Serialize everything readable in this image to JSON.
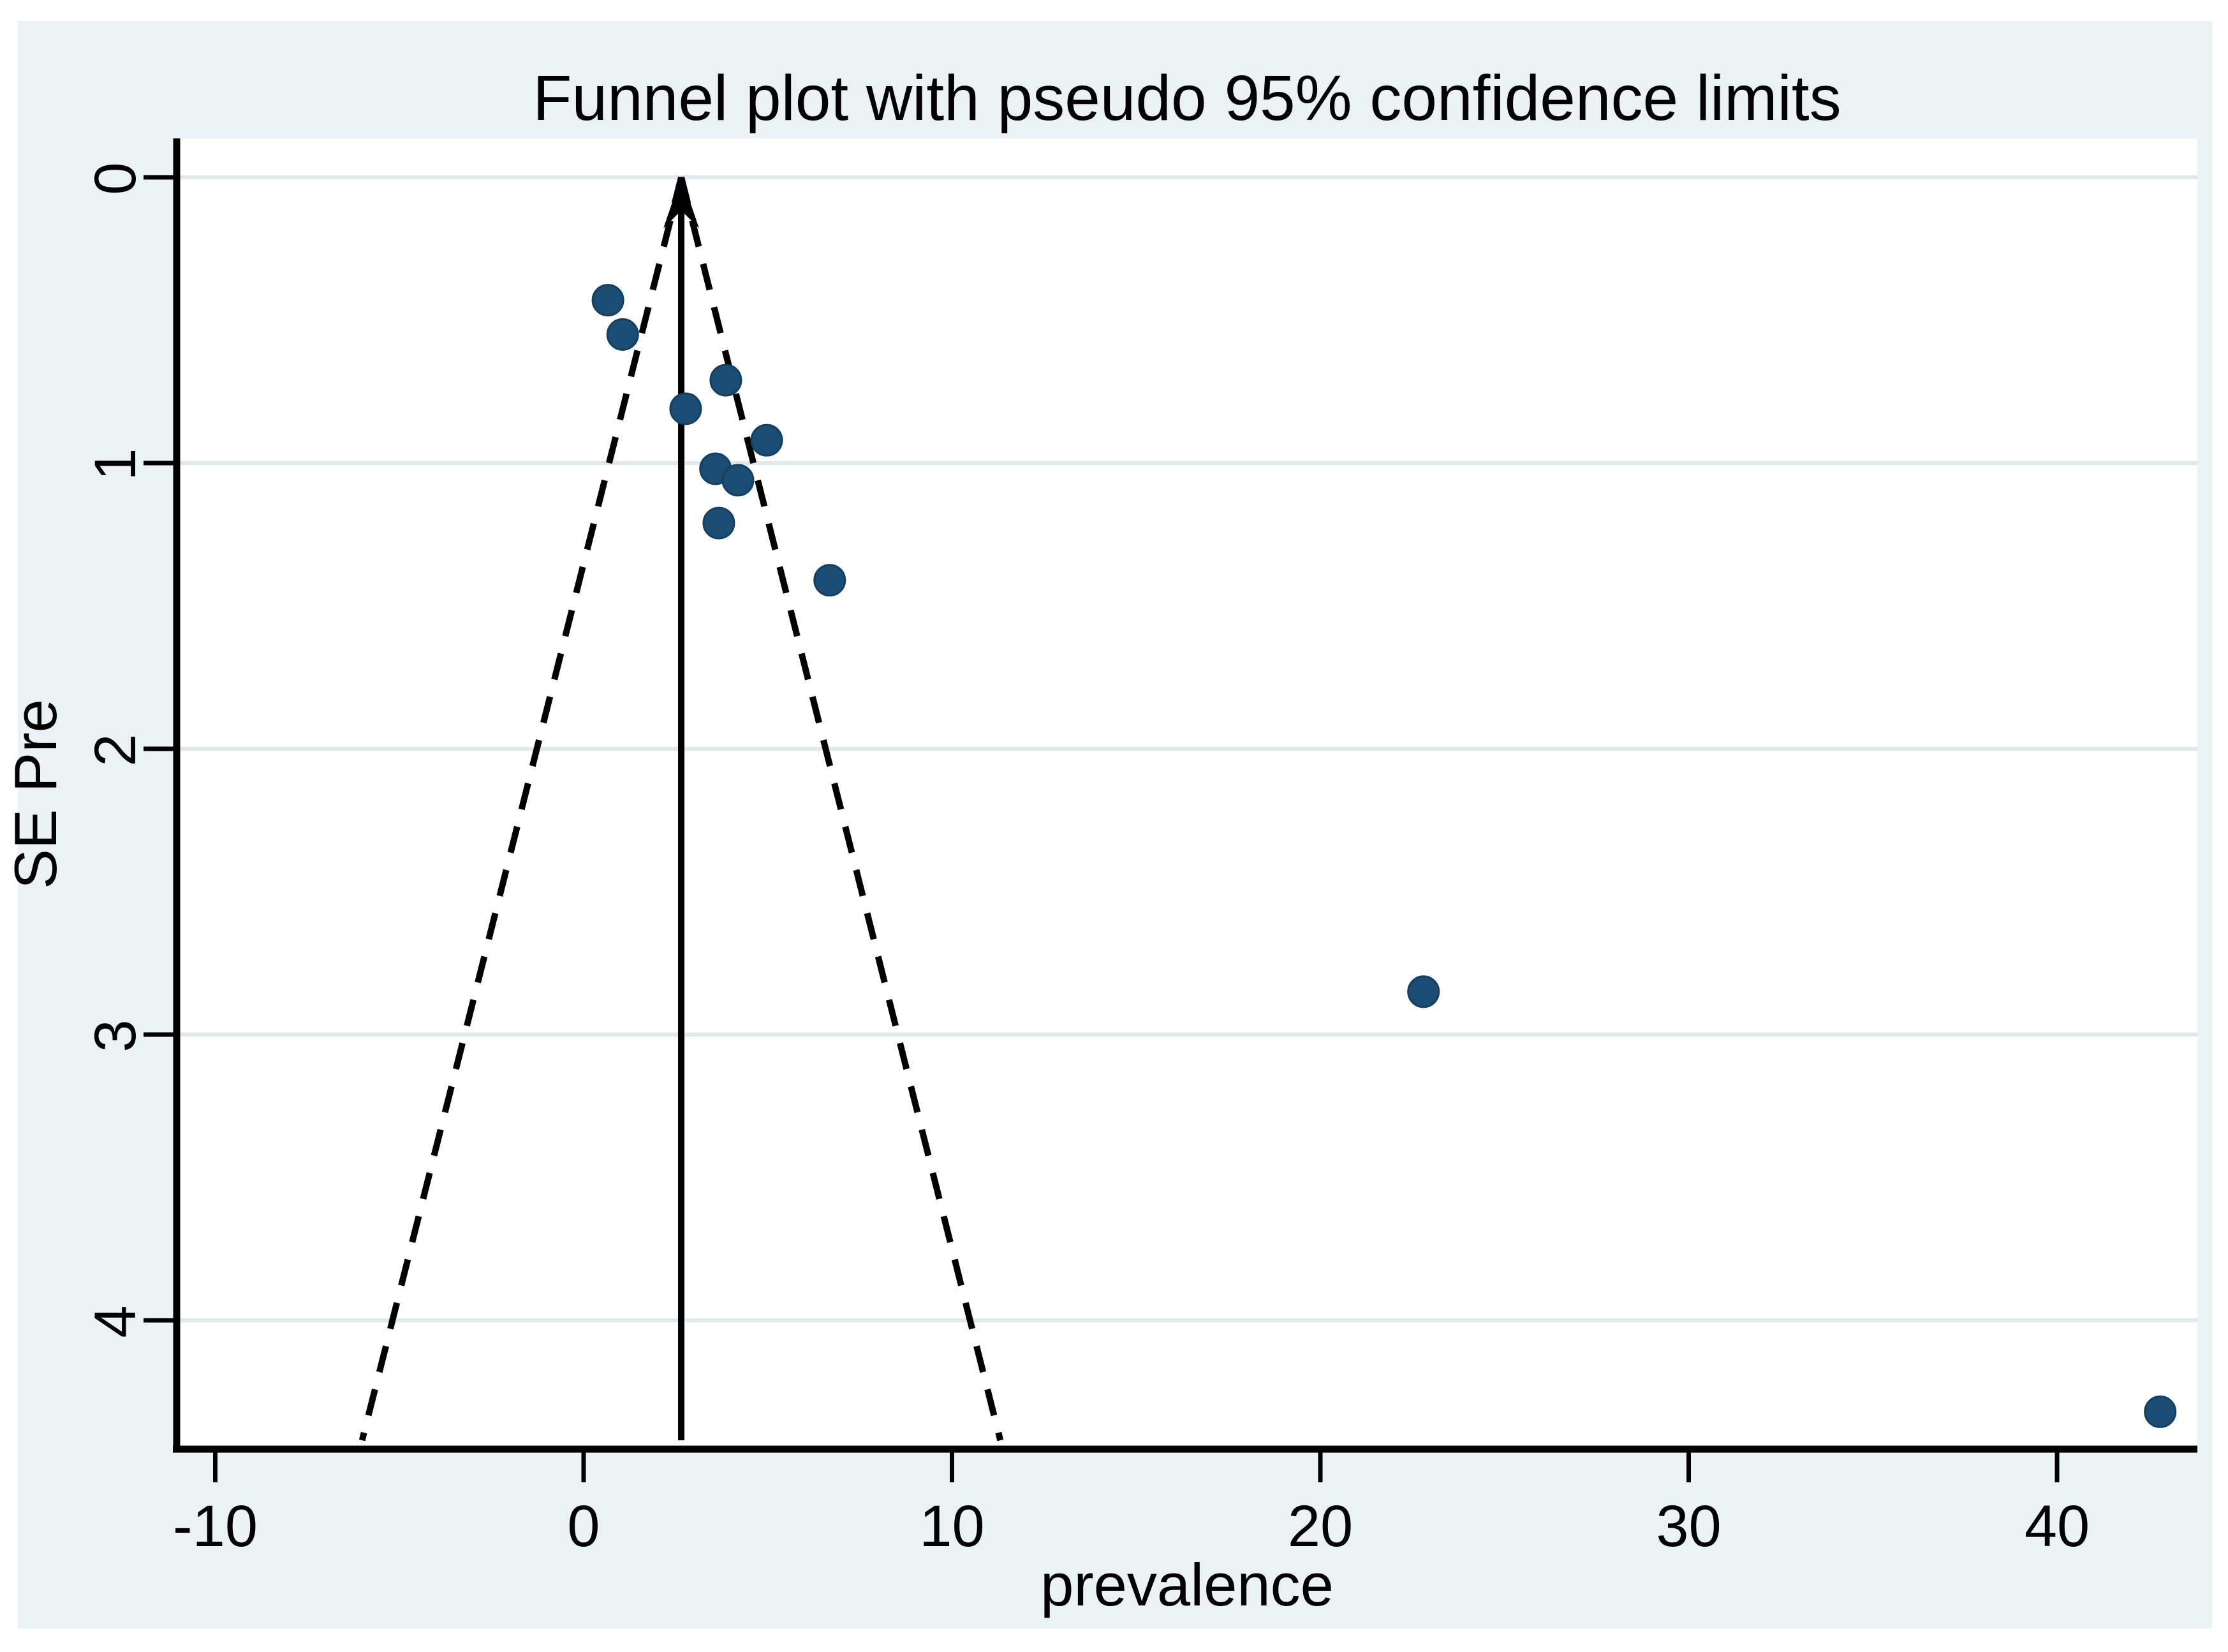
{
  "figure": {
    "kind": "stata-funnel-plot"
  },
  "chart_data": {
    "type": "scatter",
    "title": "Funnel plot with pseudo 95% confidence limits",
    "xlabel": "prevalence",
    "ylabel": "SE Pre",
    "x_ticks": [
      -10,
      0,
      10,
      20,
      30,
      40
    ],
    "y_ticks": [
      0,
      1,
      2,
      3,
      4
    ],
    "xlim": [
      -11.05,
      43.8
    ],
    "ylim_se": [
      -0.136,
      4.45
    ],
    "y_axis_inverted": true,
    "grid": true,
    "legend": "none",
    "pooled_estimate": 2.65,
    "ci_multiplier": 1.96,
    "funnel_se_max": 4.42,
    "points": [
      {
        "x": 0.66,
        "se": 0.43
      },
      {
        "x": 1.06,
        "se": 0.55
      },
      {
        "x": 3.86,
        "se": 0.71
      },
      {
        "x": 2.77,
        "se": 0.81
      },
      {
        "x": 4.97,
        "se": 0.92
      },
      {
        "x": 3.58,
        "se": 1.02
      },
      {
        "x": 4.19,
        "se": 1.06
      },
      {
        "x": 3.67,
        "se": 1.21
      },
      {
        "x": 6.68,
        "se": 1.41
      },
      {
        "x": 22.8,
        "se": 2.85
      },
      {
        "x": 42.8,
        "se": 4.32
      }
    ]
  },
  "colors": {
    "figure_background": "#eaf2f3",
    "plot_background": "#ffffff",
    "gridline": "#dde9ec",
    "axis": "#000000",
    "funnel_line": "#000000",
    "marker_fill": "#1b4d74",
    "marker_edge": "#153f60",
    "text": "#000000"
  }
}
